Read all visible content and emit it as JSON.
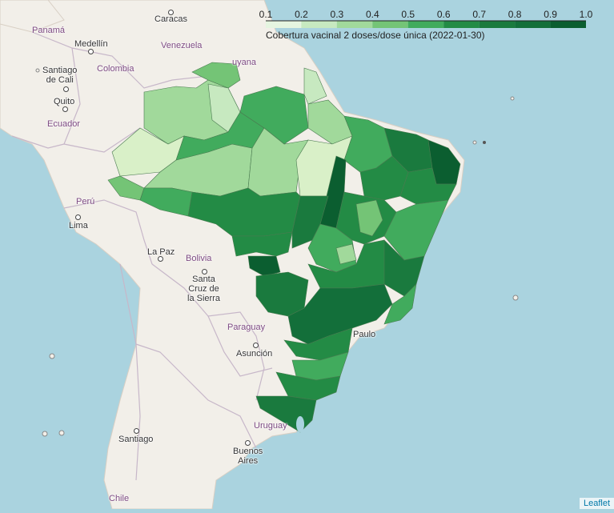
{
  "map": {
    "ocean_color": "#aad3df",
    "land_color": "#f2efe9",
    "border_color": "#c7b7c9"
  },
  "legend": {
    "title": "Cobertura vacinal 2 doses/dose única (2022-01-30)",
    "ticks": [
      "0.1",
      "0.2",
      "0.3",
      "0.4",
      "0.5",
      "0.6",
      "0.7",
      "0.8",
      "0.9",
      "1.0"
    ],
    "scale_colors": [
      "#e5f5e0",
      "#c7e9c0",
      "#a1d99b",
      "#74c476",
      "#41ab5d",
      "#238b45",
      "#1a7a3e",
      "#136f3a",
      "#0b5e30"
    ]
  },
  "cities": [
    {
      "name": "Caracas"
    },
    {
      "name": "Medellín"
    },
    {
      "name": "Santiago\nde Cali"
    },
    {
      "name": "Quito"
    },
    {
      "name": "Lima"
    },
    {
      "name": "La Paz"
    },
    {
      "name": "Santa\nCruz de\nla Sierra"
    },
    {
      "name": "Asunción"
    },
    {
      "name": "Santiago"
    },
    {
      "name": "Buenos\nAires"
    },
    {
      "name": "Paulo"
    }
  ],
  "countries": [
    {
      "name": "Panamá"
    },
    {
      "name": "Venezuela"
    },
    {
      "name": "Colombia"
    },
    {
      "name": "uyana"
    },
    {
      "name": "Ecuador"
    },
    {
      "name": "Perú"
    },
    {
      "name": "Bolivia"
    },
    {
      "name": "Paraguay"
    },
    {
      "name": "Uruguay"
    },
    {
      "name": "Chile"
    }
  ],
  "attribution": "Leaflet"
}
